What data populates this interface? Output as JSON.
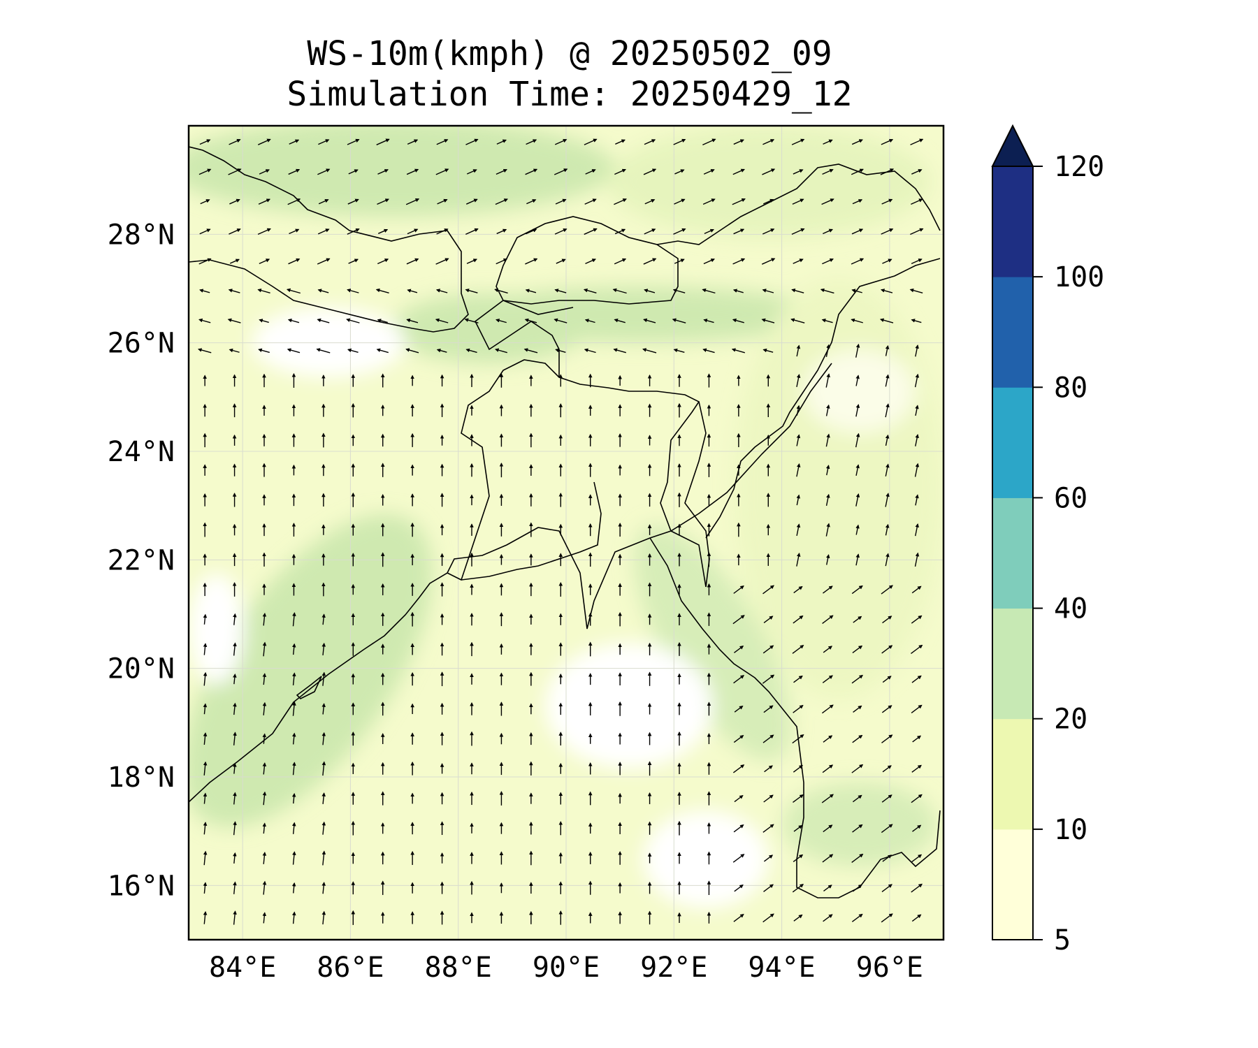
{
  "title": {
    "line1": "WS-10m(kmph) @ 20250502_09",
    "line2": "Simulation Time: 20250429_12"
  },
  "map": {
    "lon_range": [
      83.0,
      97.0
    ],
    "lat_range": [
      15.0,
      30.0
    ],
    "lon_ticks": [
      {
        "value": 84,
        "label": "84°E"
      },
      {
        "value": 86,
        "label": "86°E"
      },
      {
        "value": 88,
        "label": "88°E"
      },
      {
        "value": 90,
        "label": "90°E"
      },
      {
        "value": 92,
        "label": "92°E"
      },
      {
        "value": 94,
        "label": "94°E"
      },
      {
        "value": 96,
        "label": "96°E"
      }
    ],
    "lat_ticks": [
      {
        "value": 16,
        "label": "16°N"
      },
      {
        "value": 18,
        "label": "18°N"
      },
      {
        "value": 20,
        "label": "20°N"
      },
      {
        "value": 22,
        "label": "22°N"
      },
      {
        "value": 24,
        "label": "24°N"
      },
      {
        "value": 26,
        "label": "26°N"
      },
      {
        "value": 28,
        "label": "28°N"
      }
    ],
    "gridlines": true,
    "field": "10 m wind speed (kmph) shaded, wind vectors as arrows"
  },
  "colorbar": {
    "levels": [
      5,
      10,
      20,
      40,
      60,
      80,
      100,
      120
    ],
    "labels": [
      "5",
      "10",
      "20",
      "40",
      "60",
      "80",
      "100",
      "120"
    ],
    "colors": [
      "#ffffd9",
      "#edf8b1",
      "#c7e9b4",
      "#7fcdbb",
      "#2ca6c8",
      "#2161ab",
      "#1e2f83"
    ],
    "extend_color": "#0c1f52",
    "extend": "max"
  },
  "colors": {
    "low_wind": "#f7fbd5",
    "land_shade": "#eef7c4",
    "mid_wind": "#d2ecb6",
    "coastline": "#000000"
  }
}
